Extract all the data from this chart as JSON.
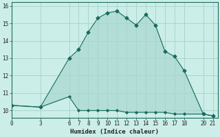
{
  "title": "",
  "xlabel": "Humidex (Indice chaleur)",
  "background_color": "#cceee8",
  "plot_bg_color": "#cceee8",
  "line_color": "#1a6b5e",
  "grid_color": "#aad4cc",
  "fill_color": "#b0ddd6",
  "x_upper": [
    0,
    3,
    6,
    7,
    8,
    9,
    10,
    11,
    12,
    13,
    14,
    15,
    16,
    17,
    18,
    20,
    21
  ],
  "y_upper": [
    10.3,
    10.2,
    13.0,
    13.5,
    14.5,
    15.3,
    15.6,
    15.7,
    15.3,
    14.9,
    15.5,
    14.9,
    13.4,
    13.1,
    12.3,
    9.8,
    9.7
  ],
  "x_lower": [
    0,
    3,
    6,
    7,
    8,
    9,
    10,
    11,
    12,
    13,
    14,
    15,
    16,
    17,
    18,
    20,
    21
  ],
  "y_lower": [
    10.3,
    10.2,
    10.8,
    10.0,
    10.0,
    10.0,
    10.0,
    10.0,
    9.9,
    9.9,
    9.9,
    9.9,
    9.9,
    9.8,
    9.8,
    9.8,
    9.7
  ],
  "xticks": [
    0,
    3,
    6,
    7,
    8,
    9,
    10,
    11,
    12,
    13,
    14,
    15,
    16,
    17,
    18,
    20,
    21
  ],
  "yticks": [
    10,
    11,
    12,
    13,
    14,
    15,
    16
  ],
  "xlim": [
    0,
    21.5
  ],
  "ylim": [
    9.6,
    16.2
  ]
}
